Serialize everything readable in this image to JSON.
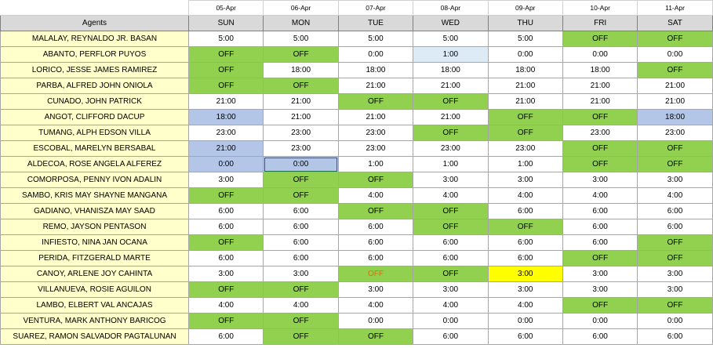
{
  "header": {
    "agents_label": "Agents",
    "dates": [
      "05-Apr",
      "06-Apr",
      "07-Apr",
      "08-Apr",
      "09-Apr",
      "10-Apr",
      "11-Apr"
    ],
    "days": [
      "SUN",
      "MON",
      "TUE",
      "WED",
      "THU",
      "FRI",
      "SAT"
    ]
  },
  "colors": {
    "off_green": "#92d050",
    "agent_yellow": "#ffffcc",
    "header_grey": "#d9d9d9",
    "highlight_blue": "#b4c6e7",
    "light_blue": "#ddebf7",
    "bright_yellow": "#ffff00",
    "orange_text": "#e26b0a"
  },
  "rows": [
    {
      "name": "MALALAY, REYNALDO JR. BASAN",
      "cells": [
        {
          "v": "5:00"
        },
        {
          "v": "5:00"
        },
        {
          "v": "5:00"
        },
        {
          "v": "5:00"
        },
        {
          "v": "5:00"
        },
        {
          "v": "OFF",
          "s": "off"
        },
        {
          "v": "OFF",
          "s": "off"
        }
      ]
    },
    {
      "name": "ABANTO, PERFLOR PUYOS",
      "cells": [
        {
          "v": "OFF",
          "s": "off"
        },
        {
          "v": "OFF",
          "s": "off"
        },
        {
          "v": "0:00"
        },
        {
          "v": "1:00",
          "s": "lightblue"
        },
        {
          "v": "0:00"
        },
        {
          "v": "0:00"
        },
        {
          "v": "0:00"
        }
      ]
    },
    {
      "name": "LORICO, JESSE JAMES RAMIREZ",
      "cells": [
        {
          "v": "OFF",
          "s": "off"
        },
        {
          "v": "18:00"
        },
        {
          "v": "18:00"
        },
        {
          "v": "18:00"
        },
        {
          "v": "18:00"
        },
        {
          "v": "18:00"
        },
        {
          "v": "OFF",
          "s": "off"
        }
      ]
    },
    {
      "name": "PARBA, ALFRED JOHN ONIOLA",
      "cells": [
        {
          "v": "OFF",
          "s": "off"
        },
        {
          "v": "OFF",
          "s": "off"
        },
        {
          "v": "21:00"
        },
        {
          "v": "21:00"
        },
        {
          "v": "21:00"
        },
        {
          "v": "21:00"
        },
        {
          "v": "21:00"
        }
      ]
    },
    {
      "name": "CUNADO, JOHN PATRICK",
      "cells": [
        {
          "v": "21:00"
        },
        {
          "v": "21:00"
        },
        {
          "v": "OFF",
          "s": "off"
        },
        {
          "v": "OFF",
          "s": "off"
        },
        {
          "v": "21:00"
        },
        {
          "v": "21:00"
        },
        {
          "v": "21:00"
        }
      ]
    },
    {
      "name": "ANGOT, CLIFFORD DACUP",
      "cells": [
        {
          "v": "18:00",
          "s": "blue"
        },
        {
          "v": "21:00"
        },
        {
          "v": "21:00"
        },
        {
          "v": "21:00"
        },
        {
          "v": "OFF",
          "s": "off"
        },
        {
          "v": "OFF",
          "s": "off"
        },
        {
          "v": "18:00",
          "s": "blue"
        }
      ]
    },
    {
      "name": "TUMANG, ALPH EDSON VILLA",
      "cells": [
        {
          "v": "23:00"
        },
        {
          "v": "23:00"
        },
        {
          "v": "23:00"
        },
        {
          "v": "OFF",
          "s": "off"
        },
        {
          "v": "OFF",
          "s": "off"
        },
        {
          "v": "23:00"
        },
        {
          "v": "23:00"
        }
      ]
    },
    {
      "name": "ESCOBAL, MARELYN BERSABAL",
      "cells": [
        {
          "v": "21:00",
          "s": "blue"
        },
        {
          "v": "23:00"
        },
        {
          "v": "23:00"
        },
        {
          "v": "23:00"
        },
        {
          "v": "23:00"
        },
        {
          "v": "OFF",
          "s": "off"
        },
        {
          "v": "OFF",
          "s": "off"
        }
      ]
    },
    {
      "name": "ALDECOA, ROSE ANGELA ALFEREZ",
      "cells": [
        {
          "v": "0:00",
          "s": "blue"
        },
        {
          "v": "0:00",
          "s": "selected"
        },
        {
          "v": "1:00"
        },
        {
          "v": "1:00"
        },
        {
          "v": "1:00"
        },
        {
          "v": "OFF",
          "s": "off"
        },
        {
          "v": "OFF",
          "s": "off"
        }
      ]
    },
    {
      "name": "COMORPOSA, PENNY IVON ADALIN",
      "cells": [
        {
          "v": "3:00"
        },
        {
          "v": "OFF",
          "s": "off"
        },
        {
          "v": "OFF",
          "s": "off"
        },
        {
          "v": "3:00"
        },
        {
          "v": "3:00"
        },
        {
          "v": "3:00"
        },
        {
          "v": "3:00"
        }
      ]
    },
    {
      "name": "SAMBO, KRIS MAY SHAYNE MANGANA",
      "cells": [
        {
          "v": "OFF",
          "s": "off"
        },
        {
          "v": "OFF",
          "s": "off"
        },
        {
          "v": "4:00"
        },
        {
          "v": "4:00"
        },
        {
          "v": "4:00"
        },
        {
          "v": "4:00"
        },
        {
          "v": "4:00"
        }
      ]
    },
    {
      "name": "GADIANO, VHANISZA MAY SAAD",
      "cells": [
        {
          "v": "6:00"
        },
        {
          "v": "6:00"
        },
        {
          "v": "OFF",
          "s": "off"
        },
        {
          "v": "OFF",
          "s": "off"
        },
        {
          "v": "6:00"
        },
        {
          "v": "6:00"
        },
        {
          "v": "6:00"
        }
      ]
    },
    {
      "name": "REMO, JAYSON PENTASON",
      "cells": [
        {
          "v": "6:00"
        },
        {
          "v": "6:00"
        },
        {
          "v": "6:00"
        },
        {
          "v": "OFF",
          "s": "off"
        },
        {
          "v": "OFF",
          "s": "off"
        },
        {
          "v": "6:00"
        },
        {
          "v": "6:00"
        }
      ]
    },
    {
      "name": "INFIESTO, NINA JAN OCANA",
      "cells": [
        {
          "v": "OFF",
          "s": "off"
        },
        {
          "v": "6:00"
        },
        {
          "v": "6:00"
        },
        {
          "v": "6:00"
        },
        {
          "v": "6:00"
        },
        {
          "v": "6:00"
        },
        {
          "v": "OFF",
          "s": "off"
        }
      ]
    },
    {
      "name": "PERIDA, FITZGERALD MARTE",
      "cells": [
        {
          "v": "6:00"
        },
        {
          "v": "6:00"
        },
        {
          "v": "6:00"
        },
        {
          "v": "6:00"
        },
        {
          "v": "6:00"
        },
        {
          "v": "OFF",
          "s": "off"
        },
        {
          "v": "OFF",
          "s": "off"
        }
      ]
    },
    {
      "name": "CANOY, ARLENE JOY CAHINTA",
      "cells": [
        {
          "v": "3:00"
        },
        {
          "v": "3:00"
        },
        {
          "v": "OFF",
          "s": "off",
          "t": "red"
        },
        {
          "v": "OFF",
          "s": "off"
        },
        {
          "v": "3:00",
          "s": "yellow"
        },
        {
          "v": "3:00"
        },
        {
          "v": "3:00"
        }
      ]
    },
    {
      "name": "VILLANUEVA, ROSIE AGUILON",
      "cells": [
        {
          "v": "OFF",
          "s": "off"
        },
        {
          "v": "OFF",
          "s": "off"
        },
        {
          "v": "3:00"
        },
        {
          "v": "3:00"
        },
        {
          "v": "3:00"
        },
        {
          "v": "3:00"
        },
        {
          "v": "3:00"
        }
      ]
    },
    {
      "name": "LAMBO, ELBERT VAL ANCAJAS",
      "cells": [
        {
          "v": "4:00"
        },
        {
          "v": "4:00"
        },
        {
          "v": "4:00"
        },
        {
          "v": "4:00"
        },
        {
          "v": "4:00"
        },
        {
          "v": "OFF",
          "s": "off"
        },
        {
          "v": "OFF",
          "s": "off"
        }
      ]
    },
    {
      "name": "VENTURA, MARK ANTHONY BARICOG",
      "cells": [
        {
          "v": "OFF",
          "s": "off"
        },
        {
          "v": "OFF",
          "s": "off"
        },
        {
          "v": "0:00"
        },
        {
          "v": "0:00"
        },
        {
          "v": "0:00"
        },
        {
          "v": "0:00"
        },
        {
          "v": "0:00"
        }
      ]
    },
    {
      "name": "SUAREZ, RAMON SALVADOR PAGTALUNAN",
      "cells": [
        {
          "v": "6:00"
        },
        {
          "v": "OFF",
          "s": "off"
        },
        {
          "v": "OFF",
          "s": "off"
        },
        {
          "v": "6:00"
        },
        {
          "v": "6:00"
        },
        {
          "v": "6:00"
        },
        {
          "v": "6:00"
        }
      ]
    }
  ]
}
